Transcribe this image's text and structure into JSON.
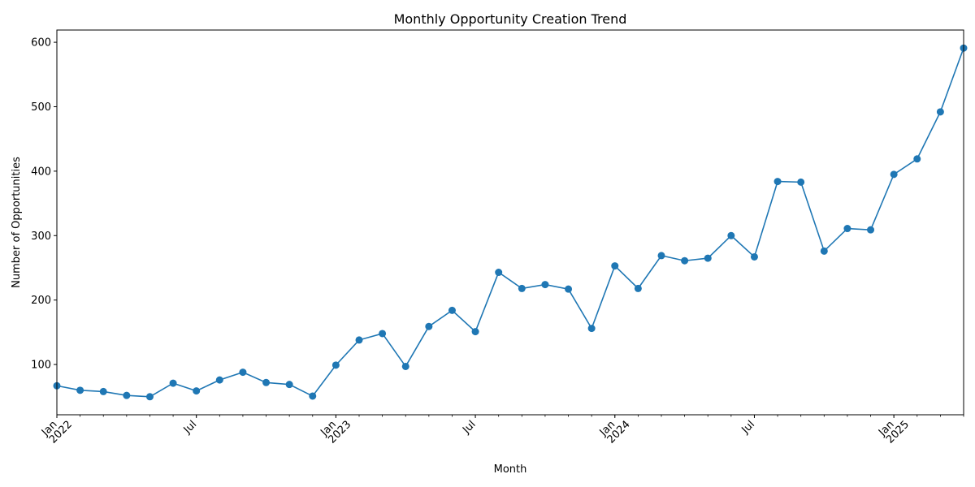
{
  "chart_data": {
    "type": "line",
    "title": "Monthly Opportunity Creation Trend",
    "xlabel": "Month",
    "ylabel": "Number of Opportunities",
    "x": [
      "2022-01",
      "2022-02",
      "2022-03",
      "2022-04",
      "2022-05",
      "2022-06",
      "2022-07",
      "2022-08",
      "2022-09",
      "2022-10",
      "2022-11",
      "2022-12",
      "2023-01",
      "2023-02",
      "2023-03",
      "2023-04",
      "2023-05",
      "2023-06",
      "2023-07",
      "2023-08",
      "2023-09",
      "2023-10",
      "2023-11",
      "2023-12",
      "2024-01",
      "2024-02",
      "2024-03",
      "2024-04",
      "2024-05",
      "2024-06",
      "2024-07",
      "2024-08",
      "2024-09",
      "2024-10",
      "2024-11",
      "2024-12",
      "2025-01",
      "2025-02",
      "2025-03",
      "2025-04"
    ],
    "values": [
      67,
      60,
      58,
      52,
      50,
      71,
      59,
      76,
      88,
      72,
      69,
      51,
      99,
      138,
      148,
      97,
      159,
      184,
      151,
      243,
      218,
      224,
      217,
      156,
      253,
      218,
      269,
      261,
      265,
      300,
      267,
      384,
      383,
      276,
      311,
      309,
      395,
      419,
      492,
      591
    ],
    "xlim": [
      "2022-01",
      "2025-04"
    ],
    "ylim": [
      22,
      619
    ],
    "yticks": [
      100,
      200,
      300,
      400,
      500,
      600
    ],
    "x_major_ticks": [
      {
        "x": "2022-01",
        "line1": "Jan",
        "line2": "2022"
      },
      {
        "x": "2022-07",
        "line1": "Jul",
        "line2": ""
      },
      {
        "x": "2023-01",
        "line1": "Jan",
        "line2": "2023"
      },
      {
        "x": "2023-07",
        "line1": "Jul",
        "line2": ""
      },
      {
        "x": "2024-01",
        "line1": "Jan",
        "line2": "2024"
      },
      {
        "x": "2024-07",
        "line1": "Jul",
        "line2": ""
      },
      {
        "x": "2025-01",
        "line1": "Jan",
        "line2": "2025"
      }
    ],
    "grid": false,
    "color": "#1f77b4"
  }
}
